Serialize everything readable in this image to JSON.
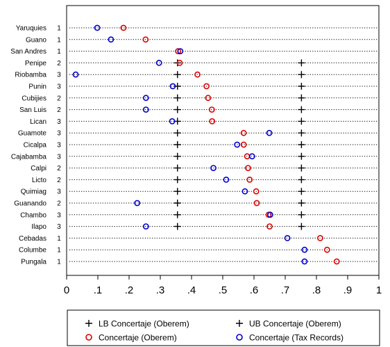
{
  "chart_data": {
    "type": "scatter",
    "orientation": "horizontal-dot-plot",
    "xlim": [
      0,
      1
    ],
    "xticks": [
      0,
      0.1,
      0.2,
      0.3,
      0.4,
      0.5,
      0.6,
      0.7,
      0.8,
      0.9,
      1
    ],
    "xtick_labels": [
      "0",
      ".1",
      ".2",
      ".3",
      ".4",
      ".5",
      ".6",
      ".7",
      ".8",
      ".9",
      "1"
    ],
    "categories": [
      {
        "name": "Yaruquies",
        "group": "1"
      },
      {
        "name": "Guano",
        "group": "1"
      },
      {
        "name": "San Andres",
        "group": "1"
      },
      {
        "name": "Penipe",
        "group": "2"
      },
      {
        "name": "Riobamba",
        "group": "3"
      },
      {
        "name": "Punin",
        "group": "3"
      },
      {
        "name": "Cubijies",
        "group": "2"
      },
      {
        "name": "San Luis",
        "group": "2"
      },
      {
        "name": "Lican",
        "group": "3"
      },
      {
        "name": "Guamote",
        "group": "3"
      },
      {
        "name": "Cicalpa",
        "group": "3"
      },
      {
        "name": "Cajabamba",
        "group": "3"
      },
      {
        "name": "Calpi",
        "group": "2"
      },
      {
        "name": "Licto",
        "group": "2"
      },
      {
        "name": "Quimiag",
        "group": "3"
      },
      {
        "name": "Guanando",
        "group": "2"
      },
      {
        "name": "Chambo",
        "group": "3"
      },
      {
        "name": "Ilapo",
        "group": "3"
      },
      {
        "name": "Cebadas",
        "group": "1"
      },
      {
        "name": "Columbe",
        "group": "1"
      },
      {
        "name": "Pungala",
        "group": "1"
      }
    ],
    "series": [
      {
        "name": "LB Concertaje (Oberem)",
        "marker": "plus",
        "color": "#000000",
        "values": [
          null,
          null,
          null,
          0.355,
          0.355,
          0.355,
          0.355,
          0.355,
          0.355,
          0.355,
          0.355,
          0.355,
          0.355,
          0.355,
          0.355,
          0.355,
          0.355,
          0.355,
          null,
          null,
          null
        ]
      },
      {
        "name": "UB Concertaje (Oberem)",
        "marker": "plus",
        "color": "#000000",
        "values": [
          null,
          null,
          null,
          0.752,
          0.752,
          0.752,
          0.752,
          0.752,
          0.752,
          0.752,
          0.752,
          0.752,
          0.752,
          0.752,
          0.752,
          0.752,
          0.752,
          0.752,
          null,
          null,
          null
        ]
      },
      {
        "name": "Concertaje (Oberem)",
        "marker": "circle",
        "color": "#dd0000",
        "values": [
          0.182,
          0.253,
          0.357,
          0.362,
          0.419,
          0.448,
          0.453,
          0.465,
          0.466,
          0.567,
          0.567,
          0.578,
          0.581,
          0.586,
          0.607,
          0.609,
          0.647,
          0.65,
          0.812,
          0.834,
          0.865
        ]
      },
      {
        "name": "Concertaje (Tax Records)",
        "marker": "circle",
        "color": "#0000cc",
        "values": [
          0.098,
          0.142,
          0.364,
          0.296,
          0.029,
          0.34,
          0.254,
          0.254,
          0.338,
          0.649,
          0.546,
          0.594,
          0.47,
          0.511,
          0.571,
          0.226,
          0.652,
          0.254,
          0.707,
          0.762,
          0.762
        ]
      }
    ],
    "grid": false,
    "legend_position": "bottom"
  }
}
